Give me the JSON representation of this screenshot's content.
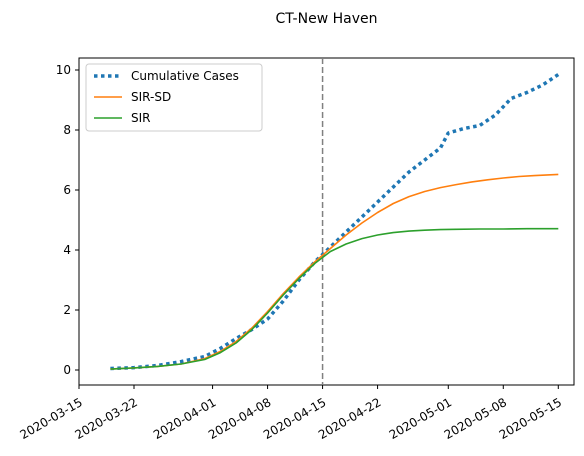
{
  "chart_data": {
    "type": "line",
    "title": "CT-New Haven",
    "xlabel": "",
    "ylabel": "",
    "x_ticks": [
      "2020-03-15",
      "2020-03-22",
      "2020-04-01",
      "2020-04-08",
      "2020-04-15",
      "2020-04-22",
      "2020-05-01",
      "2020-05-08",
      "2020-05-15"
    ],
    "y_ticks": [
      0,
      2,
      4,
      6,
      8,
      10
    ],
    "xlim": [
      "2020-03-15",
      "2020-05-17"
    ],
    "ylim": [
      -0.5,
      10.4
    ],
    "grid": false,
    "legend_position": "top-left",
    "vline": {
      "date": "2020-04-15",
      "style": "dashed",
      "color": "#808080"
    },
    "series": [
      {
        "name": "Cumulative Cases",
        "style": "dotted",
        "color": "#1f77b4",
        "x": [
          "2020-03-19",
          "2020-03-22",
          "2020-03-25",
          "2020-03-28",
          "2020-03-31",
          "2020-04-02",
          "2020-04-04",
          "2020-04-06",
          "2020-04-08",
          "2020-04-10",
          "2020-04-12",
          "2020-04-14",
          "2020-04-16",
          "2020-04-18",
          "2020-04-20",
          "2020-04-22",
          "2020-04-24",
          "2020-04-26",
          "2020-04-28",
          "2020-04-30",
          "2020-05-01",
          "2020-05-03",
          "2020-05-05",
          "2020-05-07",
          "2020-05-09",
          "2020-05-11",
          "2020-05-13",
          "2020-05-15"
        ],
        "values": [
          0.05,
          0.08,
          0.15,
          0.28,
          0.45,
          0.72,
          1.05,
          1.35,
          1.7,
          2.3,
          3.0,
          3.6,
          4.1,
          4.6,
          5.1,
          5.6,
          6.1,
          6.6,
          7.0,
          7.4,
          7.9,
          8.05,
          8.15,
          8.5,
          9.05,
          9.25,
          9.5,
          9.85
        ]
      },
      {
        "name": "SIR-SD",
        "style": "solid",
        "color": "#ff7f0e",
        "x": [
          "2020-03-19",
          "2020-03-22",
          "2020-03-25",
          "2020-03-28",
          "2020-03-31",
          "2020-04-02",
          "2020-04-04",
          "2020-04-06",
          "2020-04-08",
          "2020-04-10",
          "2020-04-12",
          "2020-04-14",
          "2020-04-16",
          "2020-04-18",
          "2020-04-20",
          "2020-04-22",
          "2020-04-24",
          "2020-04-26",
          "2020-04-28",
          "2020-04-30",
          "2020-05-02",
          "2020-05-04",
          "2020-05-06",
          "2020-05-08",
          "2020-05-10",
          "2020-05-12",
          "2020-05-15"
        ],
        "values": [
          0.03,
          0.07,
          0.12,
          0.2,
          0.38,
          0.62,
          0.95,
          1.4,
          1.95,
          2.55,
          3.1,
          3.6,
          4.05,
          4.5,
          4.9,
          5.25,
          5.55,
          5.78,
          5.95,
          6.08,
          6.18,
          6.27,
          6.34,
          6.4,
          6.45,
          6.48,
          6.52
        ]
      },
      {
        "name": "SIR",
        "style": "solid",
        "color": "#2ca02c",
        "x": [
          "2020-03-19",
          "2020-03-22",
          "2020-03-25",
          "2020-03-28",
          "2020-03-31",
          "2020-04-02",
          "2020-04-04",
          "2020-04-06",
          "2020-04-08",
          "2020-04-10",
          "2020-04-12",
          "2020-04-14",
          "2020-04-16",
          "2020-04-18",
          "2020-04-20",
          "2020-04-22",
          "2020-04-24",
          "2020-04-26",
          "2020-04-28",
          "2020-04-30",
          "2020-05-02",
          "2020-05-05",
          "2020-05-08",
          "2020-05-11",
          "2020-05-15"
        ],
        "values": [
          0.03,
          0.07,
          0.12,
          0.2,
          0.35,
          0.58,
          0.9,
          1.35,
          1.9,
          2.5,
          3.05,
          3.55,
          3.95,
          4.2,
          4.38,
          4.5,
          4.58,
          4.63,
          4.66,
          4.68,
          4.69,
          4.7,
          4.7,
          4.71,
          4.71
        ]
      }
    ]
  }
}
